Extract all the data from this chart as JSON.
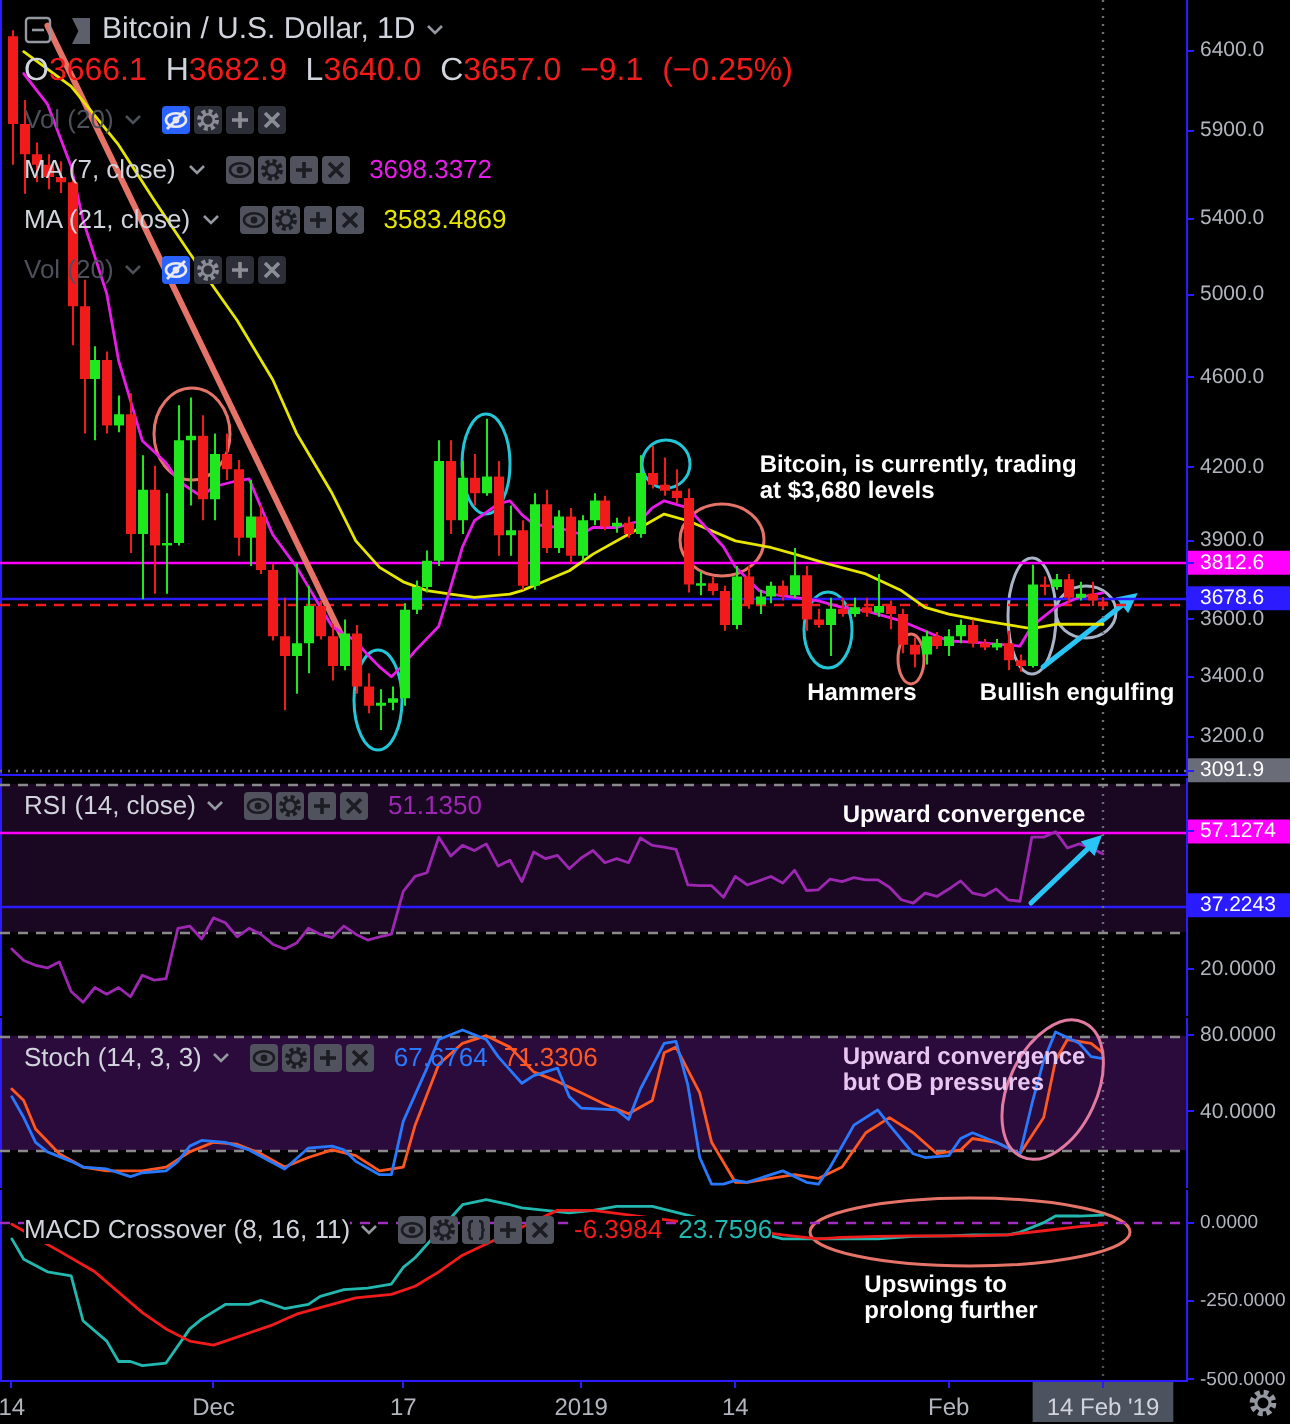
{
  "chart_data": [
    {
      "type": "candlestick",
      "title": "Bitcoin / U.S. Dollar, 1D",
      "subtitle": "O3666.1 H3682.9 L3640.0 C3657.0 −9.1 (−0.25%)",
      "x": [
        "2018-11-14",
        "2018-11-15",
        "2018-11-16",
        "2018-11-17",
        "2018-11-18",
        "2018-11-19",
        "2018-11-20",
        "2018-11-21",
        "2018-11-22",
        "2018-11-23",
        "2018-11-24",
        "2018-11-25",
        "2018-11-26",
        "2018-11-27",
        "2018-11-28",
        "2018-11-29",
        "2018-11-30",
        "2018-12-01",
        "2018-12-02",
        "2018-12-03",
        "2018-12-04",
        "2018-12-05",
        "2018-12-06",
        "2018-12-07",
        "2018-12-08",
        "2018-12-09",
        "2018-12-10",
        "2018-12-11",
        "2018-12-12",
        "2018-12-13",
        "2018-12-14",
        "2018-12-15",
        "2018-12-16",
        "2018-12-17",
        "2018-12-18",
        "2018-12-19",
        "2018-12-20",
        "2018-12-21",
        "2018-12-22",
        "2018-12-23",
        "2018-12-24",
        "2018-12-25",
        "2018-12-26",
        "2018-12-27",
        "2018-12-28",
        "2018-12-29",
        "2018-12-30",
        "2018-12-31",
        "2019-01-01",
        "2019-01-02",
        "2019-01-03",
        "2019-01-04",
        "2019-01-05",
        "2019-01-06",
        "2019-01-07",
        "2019-01-08",
        "2019-01-09",
        "2019-01-10",
        "2019-01-11",
        "2019-01-12",
        "2019-01-13",
        "2019-01-14",
        "2019-01-15",
        "2019-01-16",
        "2019-01-17",
        "2019-01-18",
        "2019-01-19",
        "2019-01-20",
        "2019-01-21",
        "2019-01-22",
        "2019-01-23",
        "2019-01-24",
        "2019-01-25",
        "2019-01-26",
        "2019-01-27",
        "2019-01-28",
        "2019-01-29",
        "2019-01-30",
        "2019-01-31",
        "2019-02-01",
        "2019-02-02",
        "2019-02-03",
        "2019-02-04",
        "2019-02-05",
        "2019-02-06",
        "2019-02-07",
        "2019-02-08",
        "2019-02-09",
        "2019-02-10",
        "2019-02-11",
        "2019-02-12",
        "2019-02-13",
        "2019-02-14"
      ],
      "ohlc": [
        [
          6490,
          6530,
          5700,
          5940
        ],
        [
          5940,
          6085,
          5535,
          5760
        ],
        [
          5760,
          5830,
          5600,
          5700
        ],
        [
          5700,
          5760,
          5560,
          5630
        ],
        [
          5630,
          5720,
          5540,
          5600
        ],
        [
          5600,
          5700,
          4750,
          4940
        ],
        [
          4940,
          5075,
          4345,
          4590
        ],
        [
          4590,
          4745,
          4315,
          4680
        ],
        [
          4680,
          4720,
          4345,
          4380
        ],
        [
          4380,
          4515,
          4350,
          4430
        ],
        [
          4430,
          4525,
          3850,
          3925
        ],
        [
          3925,
          4250,
          3675,
          4105
        ],
        [
          4105,
          4205,
          3695,
          3880
        ],
        [
          3880,
          4090,
          3695,
          3890
        ],
        [
          3890,
          4470,
          3880,
          4315
        ],
        [
          4315,
          4505,
          4040,
          4335
        ],
        [
          4335,
          4425,
          3980,
          4065
        ],
        [
          4065,
          4345,
          3980,
          4255
        ],
        [
          4255,
          4345,
          4145,
          4190
        ],
        [
          4190,
          4230,
          3840,
          3910
        ],
        [
          3910,
          4145,
          3800,
          3995
        ],
        [
          3995,
          4040,
          3770,
          3785
        ],
        [
          3785,
          3810,
          3525,
          3540
        ],
        [
          3540,
          3680,
          3285,
          3470
        ],
        [
          3470,
          3810,
          3340,
          3515
        ],
        [
          3515,
          3725,
          3410,
          3650
        ],
        [
          3650,
          3670,
          3528,
          3540
        ],
        [
          3540,
          3585,
          3385,
          3435
        ],
        [
          3435,
          3600,
          3420,
          3550
        ],
        [
          3550,
          3580,
          3340,
          3365
        ],
        [
          3365,
          3410,
          3275,
          3300
        ],
        [
          3300,
          3355,
          3220,
          3310
        ],
        [
          3310,
          3365,
          3285,
          3325
        ],
        [
          3325,
          3660,
          3300,
          3636
        ],
        [
          3636,
          3745,
          3620,
          3720
        ],
        [
          3720,
          3860,
          3700,
          3820
        ],
        [
          3820,
          4315,
          3800,
          4225
        ],
        [
          4225,
          4315,
          3925,
          3980
        ],
        [
          3980,
          4225,
          3925,
          4155
        ],
        [
          4155,
          4255,
          4040,
          4090
        ],
        [
          4090,
          4410,
          4080,
          4160
        ],
        [
          4160,
          4225,
          3840,
          3920
        ],
        [
          3920,
          4040,
          3840,
          3940
        ],
        [
          3940,
          3980,
          3710,
          3725
        ],
        [
          3725,
          4090,
          3710,
          4045
        ],
        [
          4045,
          4105,
          3850,
          3870
        ],
        [
          3870,
          4020,
          3850,
          3995
        ],
        [
          3995,
          4030,
          3810,
          3840
        ],
        [
          3840,
          4000,
          3820,
          3980
        ],
        [
          3980,
          4090,
          3960,
          4060
        ],
        [
          4060,
          4080,
          3940,
          3955
        ],
        [
          3955,
          3990,
          3930,
          3970
        ],
        [
          3970,
          3995,
          3910,
          3925
        ],
        [
          3925,
          4250,
          3910,
          4175
        ],
        [
          4175,
          4290,
          4110,
          4125
        ],
        [
          4125,
          4240,
          4080,
          4100
        ],
        [
          4100,
          4190,
          4050,
          4070
        ],
        [
          4070,
          4110,
          3700,
          3730
        ],
        [
          3725,
          3780,
          3690,
          3735
        ],
        [
          3735,
          3760,
          3690,
          3705
        ],
        [
          3705,
          3725,
          3560,
          3580
        ],
        [
          3580,
          3800,
          3565,
          3760
        ],
        [
          3760,
          3800,
          3640,
          3655
        ],
        [
          3655,
          3710,
          3620,
          3685
        ],
        [
          3685,
          3740,
          3660,
          3725
        ],
        [
          3725,
          3745,
          3670,
          3690
        ],
        [
          3690,
          3870,
          3680,
          3765
        ],
        [
          3765,
          3800,
          3560,
          3600
        ],
        [
          3600,
          3640,
          3570,
          3580
        ],
        [
          3580,
          3680,
          3470,
          3640
        ],
        [
          3640,
          3680,
          3610,
          3620
        ],
        [
          3620,
          3680,
          3610,
          3645
        ],
        [
          3645,
          3680,
          3610,
          3625
        ],
        [
          3625,
          3770,
          3610,
          3650
        ],
        [
          3650,
          3670,
          3565,
          3620
        ],
        [
          3620,
          3640,
          3480,
          3510
        ],
        [
          3510,
          3535,
          3430,
          3475
        ],
        [
          3475,
          3560,
          3440,
          3540
        ],
        [
          3540,
          3555,
          3495,
          3505
        ],
        [
          3505,
          3565,
          3470,
          3540
        ],
        [
          3540,
          3600,
          3515,
          3580
        ],
        [
          3580,
          3600,
          3500,
          3515
        ],
        [
          3515,
          3530,
          3490,
          3500
        ],
        [
          3500,
          3530,
          3490,
          3515
        ],
        [
          3515,
          3560,
          3420,
          3455
        ],
        [
          3455,
          3475,
          3415,
          3435
        ],
        [
          3435,
          3805,
          3430,
          3730
        ],
        [
          3730,
          3760,
          3690,
          3720
        ],
        [
          3720,
          3770,
          3710,
          3750
        ],
        [
          3750,
          3770,
          3660,
          3680
        ],
        [
          3680,
          3740,
          3670,
          3695
        ],
        [
          3695,
          3740,
          3650,
          3670
        ],
        [
          3666.1,
          3682.9,
          3640.0,
          3657.0
        ]
      ],
      "colors": [
        "#f21b1b",
        "#f21b1b",
        "#f21b1b",
        "#f21b1b",
        "#f21b1b",
        "#f21b1b",
        "#f21b1b",
        "#1fe81f",
        "#f21b1b",
        "#1fe81f",
        "#f21b1b",
        "#1fe81f",
        "#f21b1b",
        "#1fe81f",
        "#1fe81f",
        "#1fe81f",
        "#f21b1b",
        "#1fe81f",
        "#f21b1b",
        "#f21b1b",
        "#1fe81f",
        "#f21b1b",
        "#f21b1b",
        "#f21b1b",
        "#1fe81f",
        "#1fe81f",
        "#f21b1b",
        "#f21b1b",
        "#1fe81f",
        "#f21b1b",
        "#f21b1b",
        "#1fe81f",
        "#1fe81f",
        "#1fe81f",
        "#1fe81f",
        "#1fe81f",
        "#1fe81f",
        "#f21b1b",
        "#1fe81f",
        "#f21b1b",
        "#1fe81f",
        "#f21b1b",
        "#1fe81f",
        "#f21b1b",
        "#1fe81f",
        "#f21b1b",
        "#1fe81f",
        "#f21b1b",
        "#1fe81f",
        "#1fe81f",
        "#f21b1b",
        "#1fe81f",
        "#f21b1b",
        "#1fe81f",
        "#f21b1b",
        "#f21b1b",
        "#f21b1b",
        "#f21b1b",
        "#1fe81f",
        "#f21b1b",
        "#f21b1b",
        "#1fe81f",
        "#f21b1b",
        "#1fe81f",
        "#1fe81f",
        "#f21b1b",
        "#1fe81f",
        "#f21b1b",
        "#f21b1b",
        "#1fe81f",
        "#f21b1b",
        "#1fe81f",
        "#f21b1b",
        "#1fe81f",
        "#f21b1b",
        "#f21b1b",
        "#f21b1b",
        "#1fe81f",
        "#f21b1b",
        "#1fe81f",
        "#1fe81f",
        "#f21b1b",
        "#f21b1b",
        "#1fe81f",
        "#f21b1b",
        "#f21b1b",
        "#1fe81f",
        "#f21b1b",
        "#1fe81f",
        "#f21b1b",
        "#1fe81f",
        "#f21b1b",
        "#f21b1b"
      ],
      "series": [
        {
          "name": "MA (7, close)",
          "type": "line",
          "color": "#e81ce8",
          "x": [
            "2018-11-15",
            "2018-11-17",
            "2018-11-19",
            "2018-11-20",
            "2018-11-22",
            "2018-11-23",
            "2018-11-24",
            "2018-11-25",
            "2018-11-27",
            "2018-11-28",
            "2018-11-30",
            "2018-12-01",
            "2018-12-03",
            "2018-12-04",
            "2018-12-05",
            "2018-12-06",
            "2018-12-08",
            "2018-12-09",
            "2018-12-11",
            "2018-12-13",
            "2018-12-14",
            "2018-12-15",
            "2018-12-16",
            "2018-12-17",
            "2018-12-18",
            "2018-12-20",
            "2018-12-21",
            "2018-12-22",
            "2018-12-23",
            "2018-12-25",
            "2018-12-26",
            "2018-12-27",
            "2018-12-28",
            "2018-12-30",
            "2019-01-01",
            "2019-01-02",
            "2019-01-04",
            "2019-01-06",
            "2019-01-07",
            "2019-01-08",
            "2019-01-10",
            "2019-01-11",
            "2019-01-13",
            "2019-01-14",
            "2019-01-16",
            "2019-01-17",
            "2019-01-19",
            "2019-01-21",
            "2019-01-23",
            "2019-01-25",
            "2019-01-28",
            "2019-01-30",
            "2019-02-01",
            "2019-02-03",
            "2019-02-07",
            "2019-02-08",
            "2019-02-10",
            "2019-02-12",
            "2019-02-14"
          ],
          "values": [
            6250,
            6060,
            5690,
            5390,
            5004,
            4677,
            4491,
            4313,
            4218,
            4142,
            4076,
            4117,
            4142,
            4150,
            4034,
            3922,
            3797,
            3721,
            3575,
            3523,
            3474,
            3432,
            3398,
            3439,
            3488,
            3576,
            3720,
            3875,
            3978,
            4046,
            4059,
            4003,
            3964,
            3951,
            3924,
            3951,
            3951,
            3978,
            4030,
            4059,
            4030,
            3978,
            3875,
            3797,
            3707,
            3694,
            3682,
            3669,
            3645,
            3632,
            3595,
            3559,
            3523,
            3519,
            3505,
            3576,
            3645,
            3682,
            3698
          ]
        },
        {
          "name": "MA (21, close)",
          "type": "line",
          "color": "#e6e600",
          "x": [
            "2018-11-15",
            "2018-11-19",
            "2018-11-23",
            "2018-11-26",
            "2018-11-29",
            "2018-12-03",
            "2018-12-06",
            "2018-12-08",
            "2018-12-11",
            "2018-12-13",
            "2018-12-15",
            "2018-12-17",
            "2018-12-19",
            "2018-12-21",
            "2018-12-23",
            "2018-12-26",
            "2018-12-27",
            "2018-12-29",
            "2018-12-31",
            "2019-01-02",
            "2019-01-05",
            "2019-01-07",
            "2019-01-08",
            "2019-01-10",
            "2019-01-12",
            "2019-01-14",
            "2019-01-17",
            "2019-01-19",
            "2019-01-22",
            "2019-01-25",
            "2019-01-28",
            "2019-01-30",
            "2019-02-01",
            "2019-02-04",
            "2019-02-08",
            "2019-02-10",
            "2019-02-14"
          ],
          "values": [
            6390,
            6170,
            5815,
            5499,
            5212,
            4870,
            4587,
            4346,
            4090,
            3898,
            3795,
            3740,
            3707,
            3694,
            3682,
            3694,
            3707,
            3744,
            3782,
            3846,
            3924,
            3978,
            4005,
            3978,
            3938,
            3898,
            3872,
            3846,
            3806,
            3770,
            3707,
            3645,
            3620,
            3595,
            3567,
            3583,
            3583
          ]
        },
        {
          "type": "line",
          "color": "#e57368",
          "x": [
            "2018-11-17",
            "2018-12-12"
          ],
          "values": [
            6560,
            3525
          ]
        }
      ],
      "log": true,
      "ylim": [
        3080,
        6732
      ],
      "yticks": [
        {
          "value": 6400,
          "label": "6400.0"
        },
        {
          "value": 5900,
          "label": "5900.0"
        },
        {
          "value": 5400,
          "label": "5400.0"
        },
        {
          "value": 5000,
          "label": "5000.0"
        },
        {
          "value": 4600,
          "label": "4600.0"
        },
        {
          "value": 4200,
          "label": "4200.0"
        },
        {
          "value": 3900,
          "label": "3900.0"
        },
        {
          "value": 3812.6,
          "label": "3812.6"
        },
        {
          "value": 3678.6,
          "label": "3678.6"
        },
        {
          "value": 3600,
          "label": "3600.0"
        },
        {
          "value": 3400,
          "label": "3400.0"
        },
        {
          "value": 3200,
          "label": "3200.0"
        },
        {
          "value": 3091.9,
          "label": "3091.9"
        }
      ],
      "xlim": [
        "2018-11-13",
        "2019-02-21"
      ],
      "tick_labels": "y",
      "legend": "top left",
      "ref_lines": [
        {
          "axis": "y",
          "value": 3812.6,
          "color": "#ff00ff"
        },
        {
          "axis": "y",
          "value": 3678.6,
          "color": "#2a1cff"
        },
        {
          "axis": "y",
          "value": 3657,
          "color": "#f21b1b",
          "line_style": "dashed"
        },
        {
          "axis": "y",
          "value": 3091.9,
          "color": "#6a6d78",
          "line_style": "dotted"
        },
        {
          "axis": "x",
          "value": "2019-02-14",
          "color": "#6a6d78",
          "line_style": "dotted"
        }
      ],
      "annotations": [
        "Vol (20)",
        "3698.3372",
        "3583.4869",
        "Vol (20)",
        "Bitcoin, is currently, trading at $3,680 levels",
        "Hammers",
        {
          "text": "Bullish engulfing",
          "x": "2019-02-08",
          "y": 3430
        }
      ]
    },
    {
      "type": "line",
      "legend_title": "RSI (14, close)",
      "x": [
        "2018-11-14",
        "2018-11-15",
        "2018-11-16",
        "2018-11-17",
        "2018-11-18",
        "2018-11-19",
        "2018-11-20",
        "2018-11-21",
        "2018-11-22",
        "2018-11-23",
        "2018-11-24",
        "2018-11-25",
        "2018-11-26",
        "2018-11-27",
        "2018-11-28",
        "2018-11-29",
        "2018-11-30",
        "2018-12-01",
        "2018-12-02",
        "2018-12-03",
        "2018-12-04",
        "2018-12-05",
        "2018-12-06",
        "2018-12-07",
        "2018-12-08",
        "2018-12-09",
        "2018-12-10",
        "2018-12-11",
        "2018-12-12",
        "2018-12-13",
        "2018-12-14",
        "2018-12-15",
        "2018-12-16",
        "2018-12-17",
        "2018-12-18",
        "2018-12-19",
        "2018-12-20",
        "2018-12-21",
        "2018-12-22",
        "2018-12-23",
        "2018-12-24",
        "2018-12-25",
        "2018-12-26",
        "2018-12-27",
        "2018-12-28",
        "2018-12-29",
        "2018-12-30",
        "2018-12-31",
        "2019-01-01",
        "2019-01-02",
        "2019-01-03",
        "2019-01-04",
        "2019-01-05",
        "2019-01-06",
        "2019-01-07",
        "2019-01-08",
        "2019-01-09",
        "2019-01-10",
        "2019-01-11",
        "2019-01-12",
        "2019-01-13",
        "2019-01-14",
        "2019-01-15",
        "2019-01-16",
        "2019-01-17",
        "2019-01-18",
        "2019-01-19",
        "2019-01-20",
        "2019-01-21",
        "2019-01-22",
        "2019-01-23",
        "2019-01-24",
        "2019-01-25",
        "2019-01-26",
        "2019-01-27",
        "2019-01-28",
        "2019-01-29",
        "2019-01-30",
        "2019-01-31",
        "2019-02-01",
        "2019-02-02",
        "2019-02-03",
        "2019-02-04",
        "2019-02-05",
        "2019-02-06",
        "2019-02-07",
        "2019-02-08",
        "2019-02-09",
        "2019-02-10",
        "2019-02-11",
        "2019-02-12",
        "2019-02-13",
        "2019-02-14"
      ],
      "series": [
        {
          "color": "#9c27b0",
          "values": [
            25.4,
            22.3,
            21,
            20.3,
            21.9,
            13.9,
            11,
            15,
            13.2,
            15,
            12.5,
            18.3,
            17,
            17.4,
            31,
            31.6,
            28.1,
            33.8,
            32.5,
            28.7,
            31,
            29.4,
            26.7,
            25.4,
            27,
            31,
            29.4,
            28.5,
            31.6,
            29.4,
            27.8,
            28.7,
            29.4,
            41,
            45,
            46,
            55.6,
            50.5,
            53.4,
            52,
            53.8,
            47.8,
            49.4,
            43.6,
            51.6,
            49.8,
            50.7,
            47.1,
            50,
            52,
            48.7,
            49.8,
            48.7,
            55.4,
            53.4,
            52.9,
            52.3,
            42.7,
            42.5,
            42.5,
            39.4,
            45,
            42.7,
            43.8,
            45,
            43.2,
            46.7,
            41.2,
            41.4,
            44.3,
            43.6,
            44.7,
            44.1,
            44.1,
            42.1,
            38.7,
            37.8,
            40.5,
            39.6,
            41.6,
            43.8,
            40.5,
            39.8,
            41.6,
            38.7,
            38.3,
            55.6,
            55.6,
            57.1,
            52.7,
            53.8,
            52.7,
            51.1
          ]
        }
      ],
      "ylim": [
        7.3,
        71.6
      ],
      "yticks": [
        {
          "value": 57.1274,
          "label": "57.1274"
        },
        {
          "value": 37.2243,
          "label": "37.2243"
        },
        {
          "value": 20,
          "label": "20.0000"
        }
      ],
      "xlim": [
        "2018-11-13",
        "2019-02-21"
      ],
      "tick_labels": "y",
      "bands": [
        {
          "axis": "y",
          "from": 30,
          "to": 70,
          "color": "#1a0722"
        }
      ],
      "ref_lines": [
        {
          "axis": "y",
          "value": 70,
          "color": "#8a8a8a",
          "line_style": "dashed"
        },
        {
          "axis": "y",
          "value": 30,
          "color": "#8a8a8a",
          "line_style": "dashed"
        },
        {
          "axis": "y",
          "value": 57.1274,
          "color": "#ff00ff"
        },
        {
          "axis": "y",
          "value": 37.2243,
          "color": "#2a1cff"
        },
        {
          "axis": "x",
          "value": "2019-02-14",
          "color": "#6a6d78",
          "line_style": "dotted"
        }
      ],
      "annotations": [
        "51.1350",
        "Upward convergence"
      ]
    },
    {
      "type": "line",
      "legend_title": "Stoch (14, 3, 3)",
      "series": [
        {
          "color": "#2979ff",
          "x": [
            "2018-11-14",
            "2018-11-15",
            "2018-11-16",
            "2018-11-17",
            "2018-11-19",
            "2018-11-20",
            "2018-11-22",
            "2018-11-24",
            "2018-11-25",
            "2018-11-27",
            "2018-11-28",
            "2018-11-29",
            "2018-11-30",
            "2018-12-02",
            "2018-12-04",
            "2018-12-07",
            "2018-12-09",
            "2018-12-11",
            "2018-12-12",
            "2018-12-13",
            "2018-12-15",
            "2018-12-16",
            "2018-12-17",
            "2018-12-19",
            "2018-12-20",
            "2018-12-22",
            "2018-12-24",
            "2018-12-25",
            "2018-12-27",
            "2018-12-28",
            "2018-12-30",
            "2018-12-31",
            "2019-01-01",
            "2019-01-04",
            "2019-01-05",
            "2019-01-06",
            "2019-01-08",
            "2019-01-09",
            "2019-01-10",
            "2019-01-11",
            "2019-01-12",
            "2019-01-13",
            "2019-01-14",
            "2019-01-15",
            "2019-01-16",
            "2019-01-18",
            "2019-01-20",
            "2019-01-21",
            "2019-01-22",
            "2019-01-24",
            "2019-01-26",
            "2019-01-27",
            "2019-01-29",
            "2019-01-30",
            "2019-02-01",
            "2019-02-02",
            "2019-02-03",
            "2019-02-05",
            "2019-02-07",
            "2019-02-08",
            "2019-02-09",
            "2019-02-10",
            "2019-02-12",
            "2019-02-13",
            "2019-02-14"
          ],
          "values": [
            48,
            37,
            24,
            19,
            14,
            11,
            10,
            6,
            8,
            9,
            14,
            22,
            25,
            24,
            20,
            10,
            21,
            22,
            20,
            14,
            7,
            7,
            35,
            63,
            78,
            83,
            78,
            69,
            55,
            59,
            63,
            48,
            42,
            41,
            36,
            52,
            76,
            77,
            54,
            16,
            2,
            2,
            4,
            3,
            5,
            9,
            3,
            2,
            11,
            33,
            41,
            33,
            18,
            16,
            17,
            26,
            29,
            24,
            18,
            44,
            67,
            82,
            76,
            69,
            68
          ]
        },
        {
          "color": "#ff5722",
          "x": [
            "2018-11-14",
            "2018-11-15",
            "2018-11-16",
            "2018-11-18",
            "2018-11-20",
            "2018-11-22",
            "2018-11-25",
            "2018-11-27",
            "2018-11-29",
            "2018-12-01",
            "2018-12-03",
            "2018-12-05",
            "2018-12-07",
            "2018-12-09",
            "2018-12-11",
            "2018-12-13",
            "2018-12-15",
            "2018-12-17",
            "2018-12-18",
            "2018-12-20",
            "2018-12-22",
            "2018-12-24",
            "2018-12-26",
            "2018-12-28",
            "2018-12-30",
            "2019-01-01",
            "2019-01-03",
            "2019-01-05",
            "2019-01-07",
            "2019-01-08",
            "2019-01-09",
            "2019-01-11",
            "2019-01-12",
            "2019-01-14",
            "2019-01-15",
            "2019-01-17",
            "2019-01-19",
            "2019-01-21",
            "2019-01-23",
            "2019-01-25",
            "2019-01-27",
            "2019-01-29",
            "2019-01-31",
            "2019-02-02",
            "2019-02-03",
            "2019-02-05",
            "2019-02-07",
            "2019-02-09",
            "2019-02-10",
            "2019-02-11",
            "2019-02-13",
            "2019-02-14"
          ],
          "values": [
            52,
            46,
            31,
            18,
            11,
            9,
            9,
            11,
            19,
            24,
            23,
            18,
            11,
            16,
            20,
            17,
            9,
            11,
            33,
            65,
            76,
            80,
            74,
            61,
            56,
            50,
            44,
            39,
            46,
            71,
            74,
            50,
            24,
            3,
            3,
            5,
            7,
            5,
            11,
            29,
            37,
            29,
            18,
            20,
            26,
            24,
            18,
            37,
            67,
            78,
            76,
            71
          ]
        }
      ],
      "ylim": [
        0,
        89.3
      ],
      "yticks": [
        {
          "value": 80,
          "label": "80.0000"
        },
        {
          "value": 40,
          "label": "40.0000"
        }
      ],
      "xlim": [
        "2018-11-13",
        "2019-02-21"
      ],
      "tick_labels": "y",
      "bands": [
        {
          "axis": "y",
          "from": 20,
          "to": 80,
          "color": "#2a0b3b"
        }
      ],
      "ref_lines": [
        {
          "axis": "y",
          "value": 80,
          "color": "#8a8a8a",
          "line_style": "dashed"
        },
        {
          "axis": "y",
          "value": 20,
          "color": "#8a8a8a",
          "line_style": "dashed"
        },
        {
          "axis": "x",
          "value": "2019-02-14",
          "color": "#6a6d78",
          "line_style": "dotted"
        }
      ],
      "annotations": [
        "67.6764",
        "71.3306",
        "Upward convergence but OB pressures"
      ]
    },
    {
      "type": "line",
      "legend_title": "MACD Crossover (8, 16, 11)",
      "series": [
        {
          "color": "#f21b1b",
          "x": [
            "2018-11-14",
            "2018-11-18",
            "2018-11-21",
            "2018-11-23",
            "2018-11-25",
            "2018-11-27",
            "2018-11-29",
            "2018-12-01",
            "2018-12-02",
            "2018-12-04",
            "2018-12-06",
            "2018-12-08",
            "2018-12-11",
            "2018-12-13",
            "2018-12-16",
            "2018-12-18",
            "2018-12-20",
            "2018-12-22",
            "2018-12-30",
            "2019-01-02",
            "2019-01-18",
            "2019-01-21",
            "2019-01-23",
            "2019-01-26",
            "2019-01-29",
            "2019-02-01",
            "2019-02-03",
            "2019-02-06",
            "2019-02-09",
            "2019-02-12",
            "2019-02-14"
          ],
          "values": [
            -5,
            -91,
            -157,
            -222,
            -287,
            -339,
            -378,
            -391,
            -378,
            -352,
            -326,
            -292,
            -261,
            -240,
            -229,
            -203,
            -157,
            -104,
            39,
            39,
            -39,
            -52,
            -47,
            -44,
            -42,
            -42,
            -42,
            -39,
            -26,
            -13,
            -6
          ]
        },
        {
          "color": "#22b8b0",
          "x": [
            "2018-11-14",
            "2018-11-15",
            "2018-11-17",
            "2018-11-19",
            "2018-11-20",
            "2018-11-22",
            "2018-11-23",
            "2018-11-24",
            "2018-11-25",
            "2018-11-27",
            "2018-11-29",
            "2018-11-30",
            "2018-12-02",
            "2018-12-04",
            "2018-12-05",
            "2018-12-07",
            "2018-12-09",
            "2018-12-10",
            "2018-12-12",
            "2018-12-14",
            "2018-12-16",
            "2018-12-17",
            "2018-12-18",
            "2018-12-22",
            "2018-12-24",
            "2018-12-26",
            "2018-12-27",
            "2018-12-31",
            "2019-01-02",
            "2019-01-04",
            "2019-01-07",
            "2019-01-18",
            "2019-01-21",
            "2019-01-23",
            "2019-01-26",
            "2019-01-29",
            "2019-02-01",
            "2019-02-03",
            "2019-02-06",
            "2019-02-07",
            "2019-02-09",
            "2019-02-10",
            "2019-02-12",
            "2019-02-14"
          ],
          "values": [
            -52,
            -117,
            -157,
            -170,
            -313,
            -378,
            -443,
            -443,
            -456,
            -448,
            -339,
            -308,
            -261,
            -261,
            -248,
            -274,
            -261,
            -235,
            -214,
            -209,
            -196,
            -143,
            -112,
            57,
            73,
            57,
            47,
            31,
            39,
            52,
            52,
            -52,
            -52,
            -52,
            -52,
            -44,
            -42,
            -39,
            -39,
            -31,
            0,
            21,
            21,
            24
          ]
        }
      ],
      "ylim": [
        -502,
        104
      ],
      "yticks": [
        {
          "value": 0,
          "label": "0.0000"
        },
        {
          "value": -250,
          "label": "-250.0000"
        },
        {
          "value": -500,
          "label": "-500.0000"
        }
      ],
      "xlim": [
        "2018-11-13",
        "2019-02-21"
      ],
      "xticks": [
        {
          "value": "2018-11-14",
          "label": "14"
        },
        {
          "value": "2018-12-01",
          "label": "Dec"
        },
        {
          "value": "2018-12-17",
          "label": "17"
        },
        {
          "value": "2019-01-01",
          "label": "2019"
        },
        {
          "value": "2019-01-14",
          "label": "14"
        },
        {
          "value": "2019-02-01",
          "label": "Feb"
        },
        {
          "value": "2019-02-14",
          "label": "14 Feb '19"
        }
      ],
      "ref_lines": [
        {
          "axis": "y",
          "value": 0,
          "color": "#a02cc0",
          "line_style": "dashed"
        },
        {
          "axis": "x",
          "value": "2019-02-14",
          "color": "#4c525e",
          "line_style": "dotted"
        }
      ],
      "annotations": [
        "-6.3984",
        "23.7596",
        "Upswings to prolong further"
      ]
    }
  ]
}
